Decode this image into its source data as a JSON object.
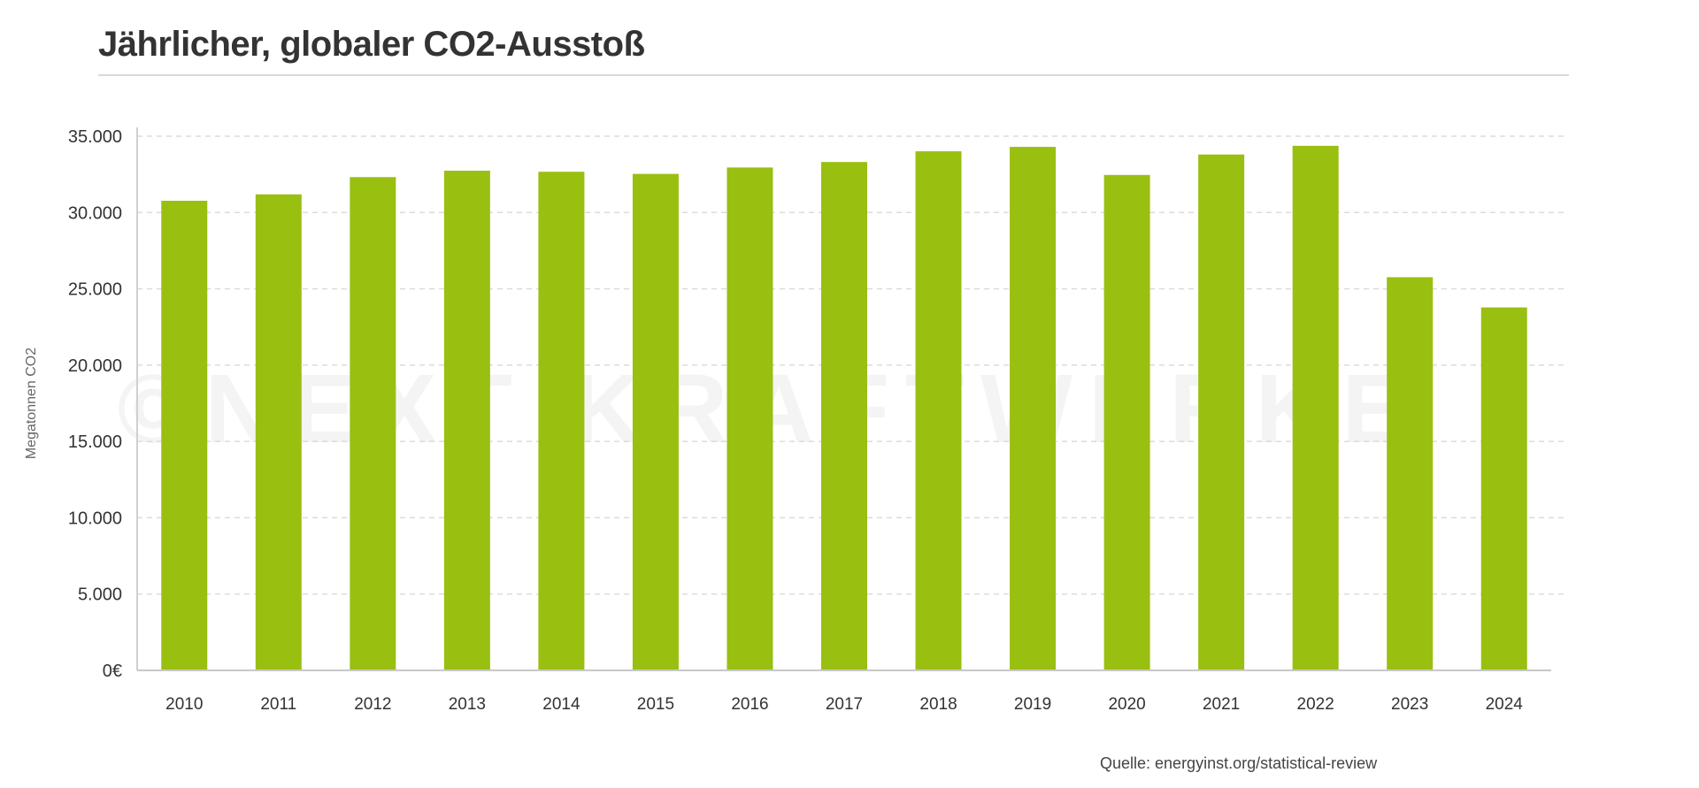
{
  "chart_data": {
    "type": "bar",
    "title": "Jährlicher, globaler CO2-Ausstoß",
    "xlabel": "",
    "ylabel": "Megatonnen CO2",
    "categories": [
      "2010",
      "2011",
      "2012",
      "2013",
      "2014",
      "2015",
      "2016",
      "2017",
      "2018",
      "2019",
      "2020",
      "2021",
      "2022",
      "2023",
      "2024"
    ],
    "values": [
      30770,
      31190,
      32320,
      32740,
      32670,
      32530,
      32950,
      33310,
      34010,
      34300,
      32460,
      33800,
      34370,
      25760,
      23780
    ],
    "ylim": [
      0,
      35000
    ],
    "yticks": [
      0,
      5000,
      10000,
      15000,
      20000,
      25000,
      30000,
      35000
    ],
    "ytick_labels": [
      "0€",
      "5.000",
      "10.000",
      "15.000",
      "20.000",
      "25.000",
      "30.000",
      "35.000"
    ],
    "grid": true,
    "bar_color": "#99bf11",
    "watermark": "©NEXT KRAFTWERKE",
    "source": "Quelle: energyinst.org/statistical-review"
  }
}
